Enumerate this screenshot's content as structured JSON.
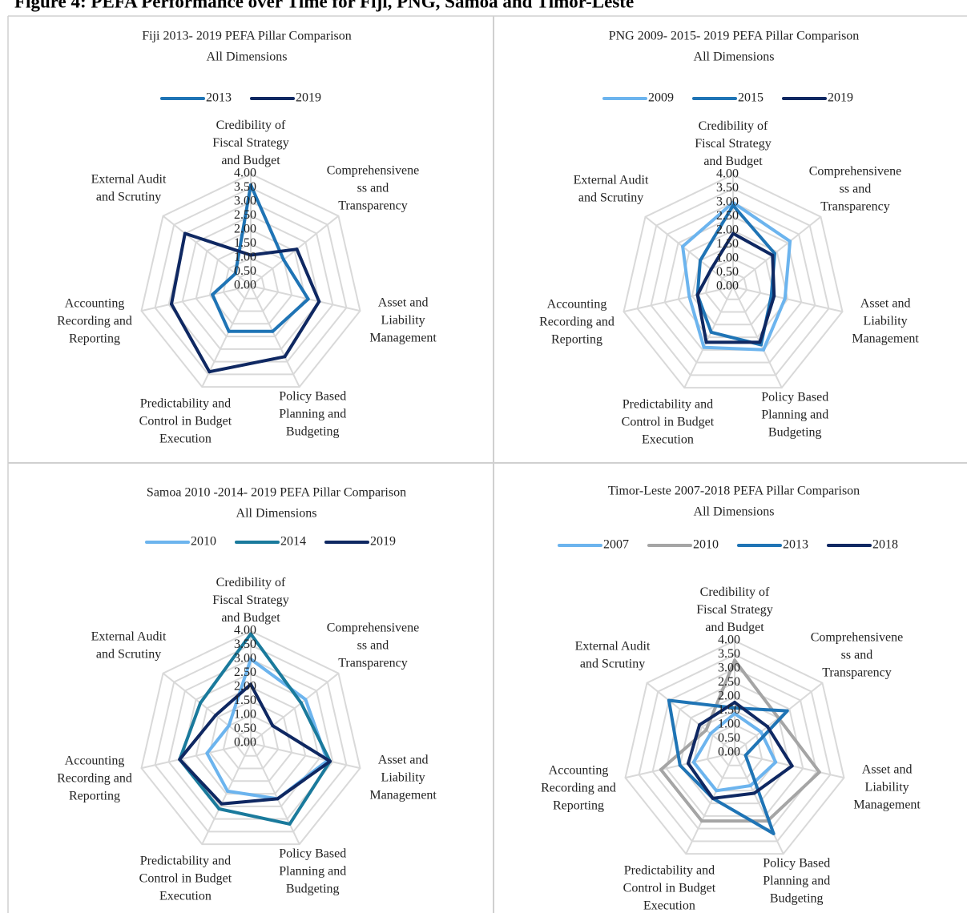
{
  "figure_title": "Figure 4: PEFA Performance over Time for Fiji, PNG, Samoa and Timor-Leste",
  "chart_data": [
    {
      "type": "radar",
      "title": "Fiji 2013- 2019 PEFA Pillar Comparison",
      "subtitle": "All Dimensions",
      "categories": [
        "Credibility of Fiscal Strategy and Budget",
        "Comprehensiveness and Transparency",
        "Asset and Liability Management",
        "Policy Based Planning and Budgeting",
        "Predictability and Control in Budget Execution",
        "Accounting Recording and Reporting",
        "External Audit and Scrutiny"
      ],
      "series": [
        {
          "name": "2013",
          "color": "#1f74b5",
          "values": [
            3.6,
            1.5,
            2.1,
            1.8,
            1.8,
            1.4,
            0.7
          ]
        },
        {
          "name": "2019",
          "color": "#0f2862",
          "values": [
            1.1,
            2.1,
            2.5,
            2.8,
            3.4,
            2.9,
            3.0
          ]
        }
      ],
      "ylim": [
        0,
        4
      ],
      "yticks": [
        {
          "value": 0,
          "label": "0.00"
        },
        {
          "value": 0.5,
          "label": "0.50"
        },
        {
          "value": 1,
          "label": "1.00"
        },
        {
          "value": 1.5,
          "label": "1.50"
        },
        {
          "value": 2,
          "label": "2.00"
        },
        {
          "value": 2.5,
          "label": "2.50"
        },
        {
          "value": 3,
          "label": "3.00"
        },
        {
          "value": 3.5,
          "label": "3.50"
        },
        {
          "value": 4,
          "label": "4.00"
        }
      ],
      "grid": true,
      "legend": "top"
    },
    {
      "type": "radar",
      "title": "PNG 2009- 2015- 2019 PEFA Pillar Comparison",
      "subtitle": "All Dimensions",
      "categories": [
        "Credibility of Fiscal Strategy and Budget",
        "Comprehensiveness and Transparency",
        "Asset and Liability Management",
        "Policy Based Planning and Budgeting",
        "Predictability and Control in Budget Execution",
        "Accounting Recording and Reporting",
        "External Audit and Scrutiny"
      ],
      "series": [
        {
          "name": "2009",
          "color": "#6cb4ee",
          "values": [
            3.0,
            2.6,
            1.9,
            2.5,
            2.4,
            1.6,
            2.3
          ]
        },
        {
          "name": "2015",
          "color": "#1f74b5",
          "values": [
            2.9,
            1.9,
            1.4,
            2.3,
            1.8,
            1.3,
            1.5
          ]
        },
        {
          "name": "2019",
          "color": "#0f2862",
          "values": [
            1.9,
            1.8,
            1.5,
            2.2,
            2.2,
            1.3,
            1.0
          ]
        }
      ],
      "ylim": [
        0,
        4
      ],
      "yticks": [
        {
          "value": 0,
          "label": "0.00"
        },
        {
          "value": 0.5,
          "label": "0.50"
        },
        {
          "value": 1,
          "label": "1.00"
        },
        {
          "value": 1.5,
          "label": "1.50"
        },
        {
          "value": 2,
          "label": "2.00"
        },
        {
          "value": 2.5,
          "label": "2.50"
        },
        {
          "value": 3,
          "label": "3.00"
        },
        {
          "value": 3.5,
          "label": "3.50"
        },
        {
          "value": 4,
          "label": "4.00"
        }
      ],
      "grid": true,
      "legend": "top"
    },
    {
      "type": "radar",
      "title": "Samoa 2010 -2014- 2019 PEFA Pillar Comparison",
      "subtitle": "All Dimensions",
      "categories": [
        "Credibility of Fiscal Strategy and Budget",
        "Comprehensiveness and Transparency",
        "Asset and Liability Management",
        "Policy Based Planning and Budgeting",
        "Predictability and Control in Budget Execution",
        "Accounting Recording and Reporting",
        "External Audit and Scrutiny"
      ],
      "series": [
        {
          "name": "2010",
          "color": "#6cb4ee",
          "values": [
            3.0,
            2.5,
            2.8,
            2.2,
            1.9,
            1.6,
            1.0
          ]
        },
        {
          "name": "2014",
          "color": "#1a7a9c",
          "values": [
            3.9,
            2.3,
            2.9,
            3.2,
            2.6,
            2.6,
            2.3
          ]
        },
        {
          "name": "2019",
          "color": "#0f2862",
          "values": [
            2.1,
            1.0,
            2.9,
            2.2,
            2.4,
            2.6,
            1.6
          ]
        }
      ],
      "ylim": [
        0,
        4
      ],
      "yticks": [
        {
          "value": 0,
          "label": "0.00"
        },
        {
          "value": 0.5,
          "label": "0.50"
        },
        {
          "value": 1,
          "label": "1.00"
        },
        {
          "value": 1.5,
          "label": "1.50"
        },
        {
          "value": 2,
          "label": "2.00"
        },
        {
          "value": 2.5,
          "label": "2.50"
        },
        {
          "value": 3,
          "label": "3.00"
        },
        {
          "value": 3.5,
          "label": "3.50"
        },
        {
          "value": 4,
          "label": "4.00"
        }
      ],
      "grid": true,
      "legend": "top"
    },
    {
      "type": "radar",
      "title": "Timor-Leste 2007-2018  PEFA Pillar Comparison",
      "subtitle": "All Dimensions",
      "categories": [
        "Credibility of Fiscal Strategy and Budget",
        "Comprehensiveness and Transparency",
        "Asset and Liability Management",
        "Policy Based Planning and Budgeting",
        "Predictability and Control in Budget Execution",
        "Accounting Recording and Reporting",
        "External Audit and Scrutiny"
      ],
      "series": [
        {
          "name": "2007",
          "color": "#6cb4ee",
          "values": [
            1.4,
            1.2,
            1.5,
            1.3,
            1.5,
            1.5,
            1.1
          ]
        },
        {
          "name": "2010",
          "color": "#a5a5a5",
          "values": [
            3.3,
            2.0,
            3.1,
            2.7,
            2.7,
            2.7,
            1.3
          ]
        },
        {
          "name": "2013",
          "color": "#1f74b5",
          "values": [
            1.6,
            2.4,
            0.4,
            3.2,
            1.8,
            2.0,
            3.0
          ]
        },
        {
          "name": "2018",
          "color": "#0f2862",
          "values": [
            1.8,
            1.5,
            2.1,
            1.6,
            1.8,
            1.7,
            1.6
          ]
        }
      ],
      "ylim": [
        0,
        4
      ],
      "yticks": [
        {
          "value": 0,
          "label": "0.00"
        },
        {
          "value": 0.5,
          "label": "0.50"
        },
        {
          "value": 1,
          "label": "1.00"
        },
        {
          "value": 1.5,
          "label": "1.50"
        },
        {
          "value": 2,
          "label": "2.00"
        },
        {
          "value": 2.5,
          "label": "2.50"
        },
        {
          "value": 3,
          "label": "3.00"
        },
        {
          "value": 3.5,
          "label": "3.50"
        },
        {
          "value": 4,
          "label": "4.00"
        }
      ],
      "grid": true,
      "legend": "top"
    }
  ]
}
